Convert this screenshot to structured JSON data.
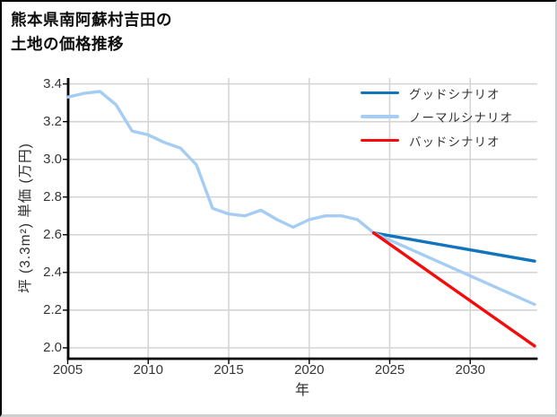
{
  "title": {
    "line1": "熊本県南阿蘇村吉田の",
    "line2": "土地の価格推移"
  },
  "chart_data": {
    "type": "line",
    "title": "熊本県南阿蘇村吉田の土地の価格推移",
    "xlabel": "年",
    "ylabel": "坪 (3.3m²) 単価 (万円)",
    "xlim": [
      2005,
      2034.2
    ],
    "ylim": [
      1.95,
      3.43
    ],
    "x_ticks": [
      2005,
      2010,
      2015,
      2020,
      2025,
      2030
    ],
    "x_tick_labels": [
      "2005",
      "2010",
      "2015",
      "2020",
      "2025",
      "2030"
    ],
    "y_ticks": [
      2.0,
      2.2,
      2.4,
      2.6,
      2.8,
      3.0,
      3.2,
      3.4
    ],
    "y_tick_labels": [
      "2.0",
      "2.2",
      "2.4",
      "2.6",
      "2.8",
      "3.0",
      "3.2",
      "3.4"
    ],
    "grid": true,
    "legend_position": "upper right inside",
    "series": [
      {
        "name": "historical",
        "in_legend": false,
        "color": "#a5cdf3",
        "x": [
          2005,
          2006,
          2007,
          2008,
          2009,
          2010,
          2011,
          2012,
          2013,
          2014,
          2015,
          2016,
          2017,
          2018,
          2019,
          2020,
          2021,
          2022,
          2023,
          2024
        ],
        "y": [
          3.33,
          3.35,
          3.36,
          3.29,
          3.15,
          3.13,
          3.09,
          3.06,
          2.97,
          2.74,
          2.71,
          2.7,
          2.73,
          2.68,
          2.64,
          2.68,
          2.7,
          2.7,
          2.68,
          2.61
        ]
      },
      {
        "name": "グッドシナリオ",
        "in_legend": true,
        "color": "#1174bd",
        "x": [
          2024,
          2034
        ],
        "y": [
          2.61,
          2.46
        ]
      },
      {
        "name": "ノーマルシナリオ",
        "in_legend": true,
        "color": "#a5cdf3",
        "x": [
          2024,
          2034
        ],
        "y": [
          2.61,
          2.23
        ]
      },
      {
        "name": "バッドシナリオ",
        "in_legend": true,
        "color": "#f40b0b",
        "x": [
          2024,
          2034
        ],
        "y": [
          2.61,
          2.01
        ]
      }
    ],
    "colors": {
      "grid": "#d5d5d5",
      "axis": "#000000",
      "tick_text": "#363636"
    }
  }
}
